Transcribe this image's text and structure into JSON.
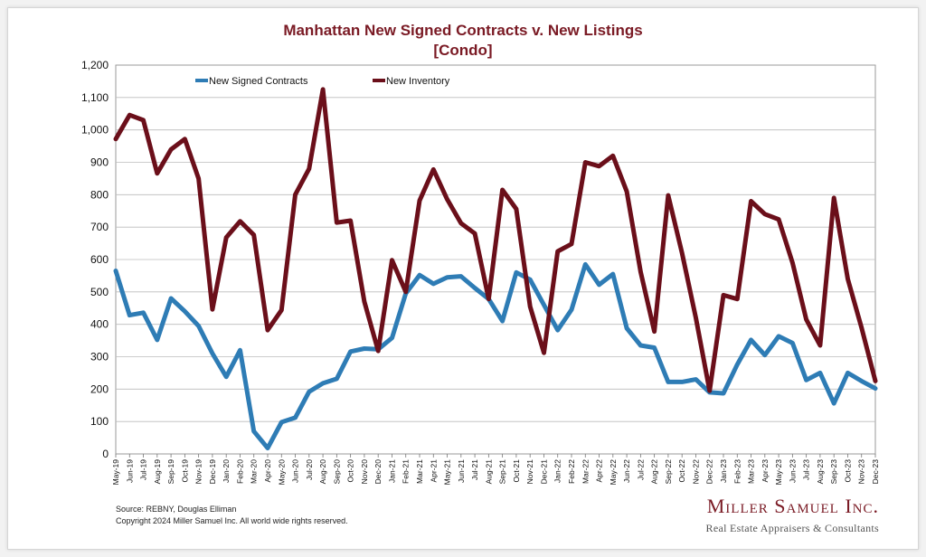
{
  "chart_data": {
    "type": "line",
    "title": "Manhattan New Signed Contracts v. New Listings",
    "subtitle": "[Condo]",
    "xlabel": "",
    "ylabel": "",
    "ylim": [
      0,
      1200
    ],
    "yticks": [
      "0",
      "100",
      "200",
      "300",
      "400",
      "500",
      "600",
      "700",
      "800",
      "900",
      "1,000",
      "1,100",
      "1,200"
    ],
    "grid": true,
    "legend_position": "top",
    "categories": [
      "May-19",
      "Jun-19",
      "Jul-19",
      "Aug-19",
      "Sep-19",
      "Oct-19",
      "Nov-19",
      "Dec-19",
      "Jan-20",
      "Feb-20",
      "Mar-20",
      "Apr-20",
      "May-20",
      "Jun-20",
      "Jul-20",
      "Aug-20",
      "Sep-20",
      "Oct-20",
      "Nov-20",
      "Dec-20",
      "Jan-21",
      "Feb-21",
      "Mar-21",
      "Apr-21",
      "May-21",
      "Jun-21",
      "Jul-21",
      "Aug-21",
      "Sep-21",
      "Oct-21",
      "Nov-21",
      "Dec-21",
      "Jan-22",
      "Feb-22",
      "Mar-22",
      "Apr-22",
      "May-22",
      "Jun-22",
      "Jul-22",
      "Aug-22",
      "Sep-22",
      "Oct-22",
      "Nov-22",
      "Dec-22",
      "Jan-23",
      "Feb-23",
      "Mar-23",
      "Apr-23",
      "May-23",
      "Jun-23",
      "Jul-23",
      "Aug-23",
      "Sep-23",
      "Oct-23",
      "Nov-23",
      "Dec-23"
    ],
    "series": [
      {
        "name": "New Signed Contracts",
        "color": "#2e7cb5",
        "values": [
          565,
          428,
          436,
          352,
          480,
          440,
          395,
          310,
          238,
          320,
          70,
          18,
          98,
          112,
          192,
          218,
          232,
          316,
          325,
          323,
          358,
          495,
          552,
          525,
          545,
          548,
          512,
          478,
          410,
          560,
          538,
          460,
          382,
          445,
          585,
          522,
          555,
          388,
          335,
          328,
          222,
          222,
          230,
          190,
          187,
          276,
          352,
          305,
          363,
          342,
          228,
          250,
          156,
          250,
          225,
          202
        ]
      },
      {
        "name": "New Inventory",
        "color": "#6b0f1a",
        "values": [
          972,
          1046,
          1030,
          866,
          940,
          972,
          850,
          446,
          668,
          718,
          676,
          382,
          444,
          800,
          880,
          1125,
          714,
          720,
          470,
          318,
          598,
          500,
          782,
          878,
          786,
          712,
          680,
          478,
          815,
          756,
          455,
          312,
          625,
          648,
          900,
          888,
          920,
          810,
          562,
          378,
          798,
          620,
          420,
          195,
          490,
          478,
          780,
          740,
          724,
          590,
          415,
          335,
          790,
          540,
          390,
          225
        ]
      }
    ]
  },
  "footer": {
    "source": "Source: REBNY, Douglas Elliman",
    "copyright": "Copyright 2024 Miller Samuel Inc.  All world wide rights reserved."
  },
  "brand": {
    "name": "Miller Samuel Inc.",
    "tagline": "Real Estate Appraisers & Consultants"
  }
}
